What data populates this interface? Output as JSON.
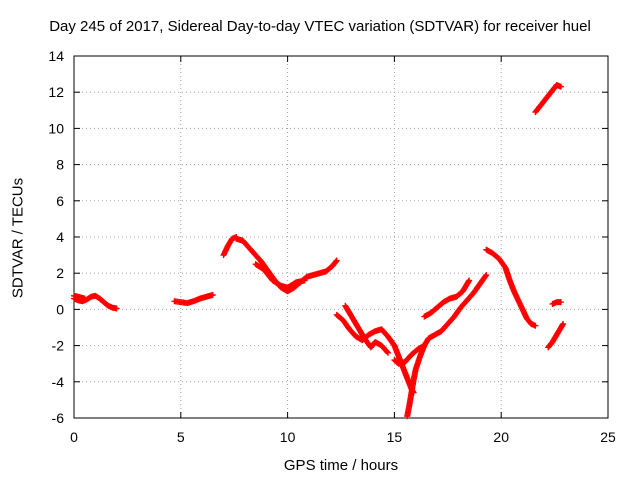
{
  "chart_data": {
    "type": "scatter",
    "title": "Day 245 of 2017, Sidereal Day-to-day VTEC variation (SDTVAR) for receiver huel",
    "xlabel": "GPS time / hours",
    "ylabel": "SDTVAR / TECUs",
    "xlim": [
      0,
      25
    ],
    "ylim": [
      -6,
      14
    ],
    "xticks": [
      "0",
      "5",
      "10",
      "15",
      "20",
      "25"
    ],
    "yticks": [
      "-6",
      "-4",
      "-2",
      "0",
      "2",
      "4",
      "6",
      "8",
      "10",
      "12",
      "14"
    ],
    "grid": true,
    "marker": "+",
    "color": "#ff0000",
    "series": [
      {
        "x": [
          0.0,
          0.2,
          0.4,
          0.6,
          0.8,
          1.0,
          1.2,
          1.4,
          1.6,
          1.8,
          2.0
        ],
        "y": [
          0.6,
          0.5,
          0.45,
          0.55,
          0.7,
          0.75,
          0.6,
          0.4,
          0.2,
          0.1,
          0.05
        ]
      },
      {
        "x": [
          0.0,
          0.2,
          0.5
        ],
        "y": [
          0.75,
          0.7,
          0.6
        ]
      },
      {
        "x": [
          4.7,
          5.0,
          5.3,
          5.6,
          5.9,
          6.2,
          6.5
        ],
        "y": [
          0.45,
          0.4,
          0.35,
          0.45,
          0.6,
          0.7,
          0.8
        ]
      },
      {
        "x": [
          7.0,
          7.2,
          7.4,
          7.6
        ],
        "y": [
          3.0,
          3.5,
          3.9,
          4.0
        ]
      },
      {
        "x": [
          7.6,
          7.9,
          8.2,
          8.5,
          8.8,
          9.1,
          9.4,
          9.7,
          10.0,
          10.3,
          10.6,
          10.9,
          11.2,
          11.5,
          11.8,
          12.1,
          12.3
        ],
        "y": [
          3.9,
          3.8,
          3.4,
          3.0,
          2.6,
          2.1,
          1.6,
          1.2,
          1.0,
          1.2,
          1.5,
          1.8,
          1.9,
          2.0,
          2.1,
          2.4,
          2.7
        ]
      },
      {
        "x": [
          8.5,
          8.9,
          9.3,
          9.7,
          10.0,
          10.4,
          10.8
        ],
        "y": [
          2.5,
          2.2,
          1.6,
          1.3,
          1.2,
          1.5,
          1.6
        ]
      },
      {
        "x": [
          12.3,
          12.6,
          12.9,
          13.2,
          13.5,
          13.8,
          14.1,
          14.4,
          14.7,
          15.0,
          15.3,
          15.6,
          15.8,
          15.9
        ],
        "y": [
          -0.3,
          -0.6,
          -1.1,
          -1.5,
          -1.7,
          -1.4,
          -1.2,
          -1.1,
          -1.5,
          -2.0,
          -2.9,
          -3.8,
          -4.4,
          -4.6
        ]
      },
      {
        "x": [
          12.7,
          13.0,
          13.3,
          13.6,
          13.9,
          14.1,
          14.4,
          14.7
        ],
        "y": [
          0.2,
          -0.4,
          -1.0,
          -1.6,
          -2.1,
          -1.8,
          -2.0,
          -2.4
        ]
      },
      {
        "x": [
          15.0,
          15.2,
          15.5,
          15.8,
          16.1,
          16.4
        ],
        "y": [
          -2.8,
          -3.0,
          -2.9,
          -2.5,
          -2.2,
          -2.0
        ]
      },
      {
        "x": [
          15.6,
          15.7,
          15.8,
          15.9,
          16.0,
          16.2,
          16.4,
          16.6,
          16.9,
          17.2,
          17.5,
          17.8,
          18.1,
          18.4,
          18.7,
          19.0,
          19.3
        ],
        "y": [
          -5.9,
          -5.3,
          -4.6,
          -3.9,
          -3.3,
          -2.6,
          -2.0,
          -1.6,
          -1.4,
          -1.2,
          -0.8,
          -0.4,
          0.1,
          0.5,
          0.9,
          1.4,
          1.9
        ]
      },
      {
        "x": [
          16.4,
          16.7,
          17.0,
          17.3,
          17.6,
          17.9,
          18.2,
          18.5
        ],
        "y": [
          -0.4,
          -0.2,
          0.1,
          0.4,
          0.6,
          0.7,
          1.0,
          1.6
        ]
      },
      {
        "x": [
          19.3,
          19.6,
          19.9,
          20.2,
          20.4,
          20.6,
          20.8,
          21.0,
          21.2,
          21.4,
          21.6
        ],
        "y": [
          3.3,
          3.1,
          2.8,
          2.3,
          1.6,
          1.0,
          0.5,
          0.0,
          -0.5,
          -0.8,
          -0.9
        ]
      },
      {
        "x": [
          21.6,
          21.8,
          22.0,
          22.2,
          22.4,
          22.6,
          22.8
        ],
        "y": [
          10.9,
          11.2,
          11.5,
          11.8,
          12.1,
          12.4,
          12.3
        ]
      },
      {
        "x": [
          22.4,
          22.6,
          22.8
        ],
        "y": [
          0.3,
          0.4,
          0.4
        ]
      },
      {
        "x": [
          22.2,
          22.4,
          22.6,
          22.8,
          22.9
        ],
        "y": [
          -2.1,
          -1.8,
          -1.4,
          -1.0,
          -0.8
        ]
      }
    ]
  }
}
